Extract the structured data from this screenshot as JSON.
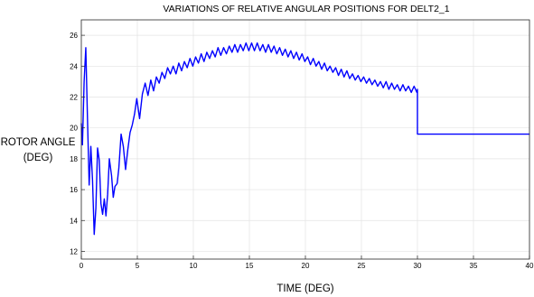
{
  "chart_data": {
    "type": "line",
    "title": "VARIATIONS OF RELATIVE ANGULAR POSITIONS FOR DELT2_1",
    "xlabel": "TIME (DEG)",
    "ylabel_line1": "ROTOR ANGLE",
    "ylabel_line2": "(DEG)",
    "xlim": [
      0,
      40
    ],
    "ylim": [
      11.5,
      27
    ],
    "xticks": [
      0,
      5,
      10,
      15,
      20,
      25,
      30,
      35,
      40
    ],
    "yticks": [
      12,
      14,
      16,
      18,
      20,
      22,
      24,
      26
    ],
    "grid": true,
    "line_color": "#0000ff",
    "series": [
      {
        "x": [
          0,
          0.1,
          0.25,
          0.4,
          0.55,
          0.7,
          0.85,
          1.0,
          1.15,
          1.3,
          1.45,
          1.6,
          1.75,
          1.9,
          2.05,
          2.2,
          2.35,
          2.5,
          2.7,
          2.85,
          3.0,
          3.2,
          3.35,
          3.55,
          3.75,
          3.95,
          4.15,
          4.35,
          4.55,
          4.75,
          4.95,
          5.2,
          5.45,
          5.7,
          5.95,
          6.2,
          6.45,
          6.7,
          6.95,
          7.2,
          7.45,
          7.7,
          7.95,
          8.2,
          8.45,
          8.7,
          8.95,
          9.2,
          9.45,
          9.7,
          9.95,
          10.2,
          10.45,
          10.7,
          10.95,
          11.2,
          11.45,
          11.7,
          11.95,
          12.2,
          12.45,
          12.7,
          12.95,
          13.2,
          13.45,
          13.7,
          13.95,
          14.2,
          14.45,
          14.7,
          14.95,
          15.2,
          15.45,
          15.7,
          15.95,
          16.2,
          16.45,
          16.7,
          16.95,
          17.2,
          17.45,
          17.7,
          17.95,
          18.2,
          18.45,
          18.7,
          18.95,
          19.2,
          19.45,
          19.7,
          19.95,
          20.2,
          20.45,
          20.7,
          20.95,
          21.2,
          21.45,
          21.7,
          21.95,
          22.2,
          22.45,
          22.7,
          22.95,
          23.2,
          23.45,
          23.7,
          23.95,
          24.2,
          24.45,
          24.7,
          24.95,
          25.2,
          25.45,
          25.7,
          25.95,
          26.2,
          26.45,
          26.7,
          26.95,
          27.2,
          27.45,
          27.7,
          27.95,
          28.2,
          28.45,
          28.7,
          28.95,
          29.2,
          29.45,
          29.7,
          29.95,
          30.0,
          30.0,
          40.0
        ],
        "y": [
          20.3,
          18.9,
          23.0,
          25.2,
          20.6,
          16.3,
          18.8,
          16.6,
          13.1,
          14.8,
          18.7,
          17.9,
          15.1,
          14.4,
          15.4,
          14.3,
          15.7,
          18.0,
          16.9,
          15.5,
          16.2,
          16.4,
          17.4,
          19.6,
          18.8,
          17.3,
          18.6,
          19.7,
          20.2,
          20.9,
          21.9,
          20.6,
          22.2,
          22.9,
          22.1,
          23.1,
          22.4,
          23.3,
          22.9,
          23.6,
          23.2,
          23.9,
          23.5,
          24.0,
          23.5,
          24.2,
          23.7,
          24.3,
          23.9,
          24.5,
          24.0,
          24.6,
          24.2,
          24.8,
          24.3,
          24.9,
          24.5,
          25.0,
          24.6,
          25.2,
          24.7,
          25.2,
          24.8,
          25.3,
          24.9,
          25.4,
          24.9,
          25.4,
          25.0,
          25.5,
          25.0,
          25.5,
          25.0,
          25.5,
          25.0,
          25.4,
          24.9,
          25.4,
          24.9,
          25.3,
          24.8,
          25.2,
          24.7,
          25.1,
          24.6,
          25.0,
          24.5,
          24.9,
          24.4,
          24.8,
          24.3,
          24.6,
          24.1,
          24.5,
          24.0,
          24.3,
          23.8,
          24.2,
          23.7,
          24.0,
          23.6,
          23.9,
          23.4,
          23.8,
          23.3,
          23.7,
          23.2,
          23.5,
          23.1,
          23.4,
          23.0,
          23.3,
          22.9,
          23.2,
          22.8,
          23.1,
          22.7,
          23.0,
          22.6,
          23.0,
          22.5,
          22.9,
          22.5,
          22.8,
          22.4,
          22.8,
          22.4,
          22.7,
          22.3,
          22.7,
          22.3,
          22.5,
          19.6,
          19.6
        ]
      }
    ]
  }
}
